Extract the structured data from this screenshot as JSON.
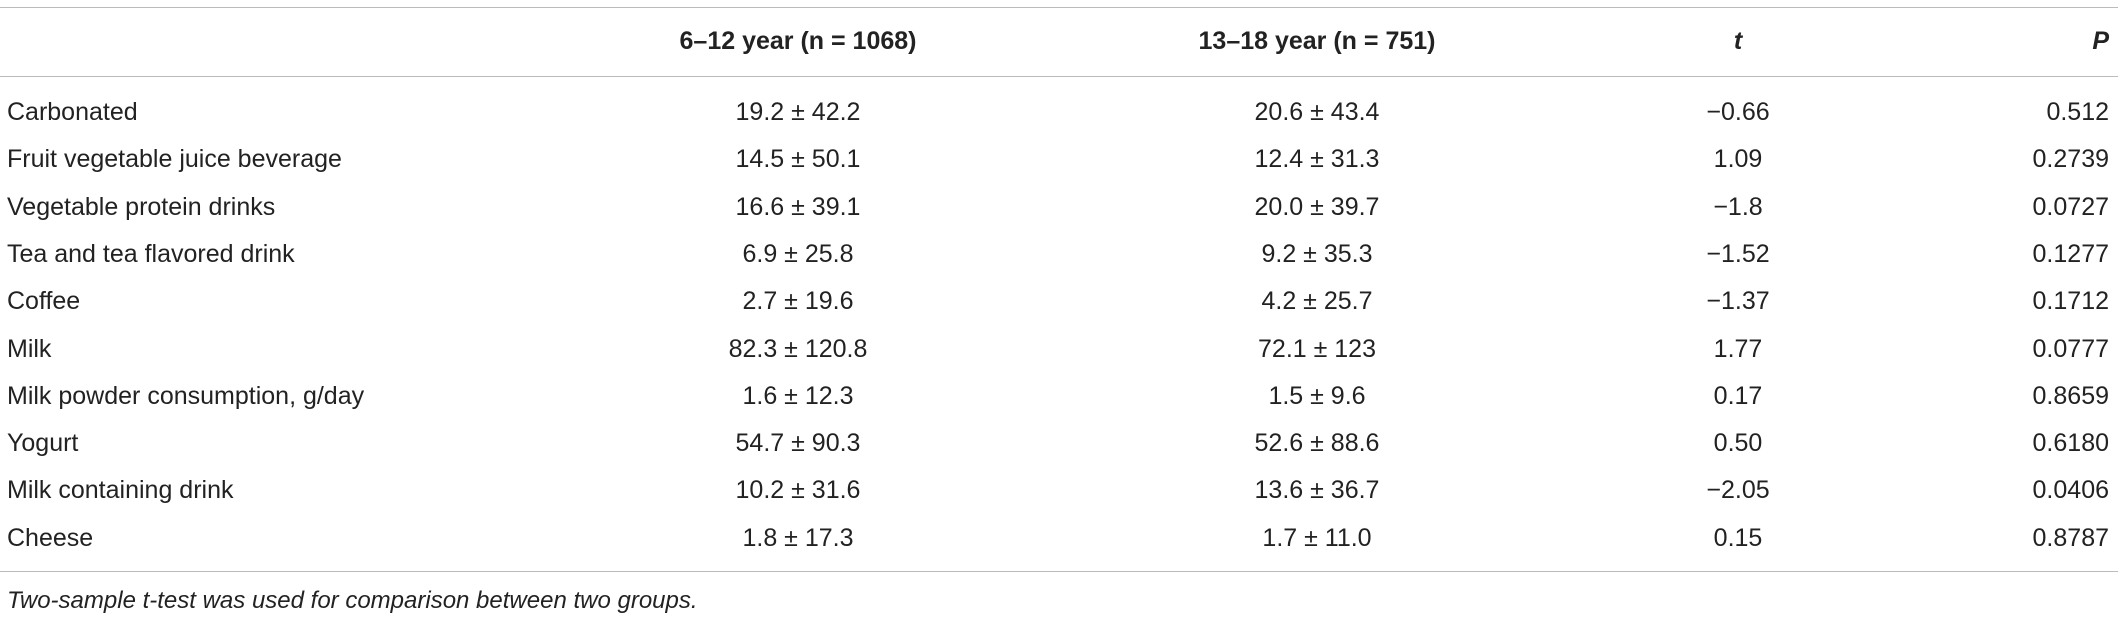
{
  "table": {
    "header": [
      "",
      "6–12 year (n = 1068)",
      "13–18 year (n = 751)",
      "t",
      "P"
    ],
    "rows": [
      [
        "Carbonated",
        "19.2 ± 42.2",
        "20.6 ± 43.4",
        "−0.66",
        "0.512"
      ],
      [
        "Fruit vegetable juice beverage",
        "14.5 ± 50.1",
        "12.4 ± 31.3",
        "1.09",
        "0.2739"
      ],
      [
        "Vegetable protein drinks",
        "16.6 ± 39.1",
        "20.0 ± 39.7",
        "−1.8",
        "0.0727"
      ],
      [
        "Tea and tea flavored drink",
        "6.9 ± 25.8",
        "9.2 ± 35.3",
        "−1.52",
        "0.1277"
      ],
      [
        "Coffee",
        "2.7 ± 19.6",
        "4.2 ± 25.7",
        "−1.37",
        "0.1712"
      ],
      [
        "Milk",
        "82.3 ± 120.8",
        "72.1 ± 123",
        "1.77",
        "0.0777"
      ],
      [
        "Milk powder consumption, g/day",
        "1.6 ± 12.3",
        "1.5 ± 9.6",
        "0.17",
        "0.8659"
      ],
      [
        "Yogurt",
        "54.7 ± 90.3",
        "52.6 ± 88.6",
        "0.50",
        "0.6180"
      ],
      [
        "Milk containing drink",
        "10.2 ± 31.6",
        "13.6 ± 36.7",
        "−2.05",
        "0.0406"
      ],
      [
        "Cheese",
        "1.8 ± 17.3",
        "1.7 ± 11.0",
        "0.15",
        "0.8787"
      ]
    ],
    "footnote": "Two-sample t-test was used for comparison between two groups."
  }
}
